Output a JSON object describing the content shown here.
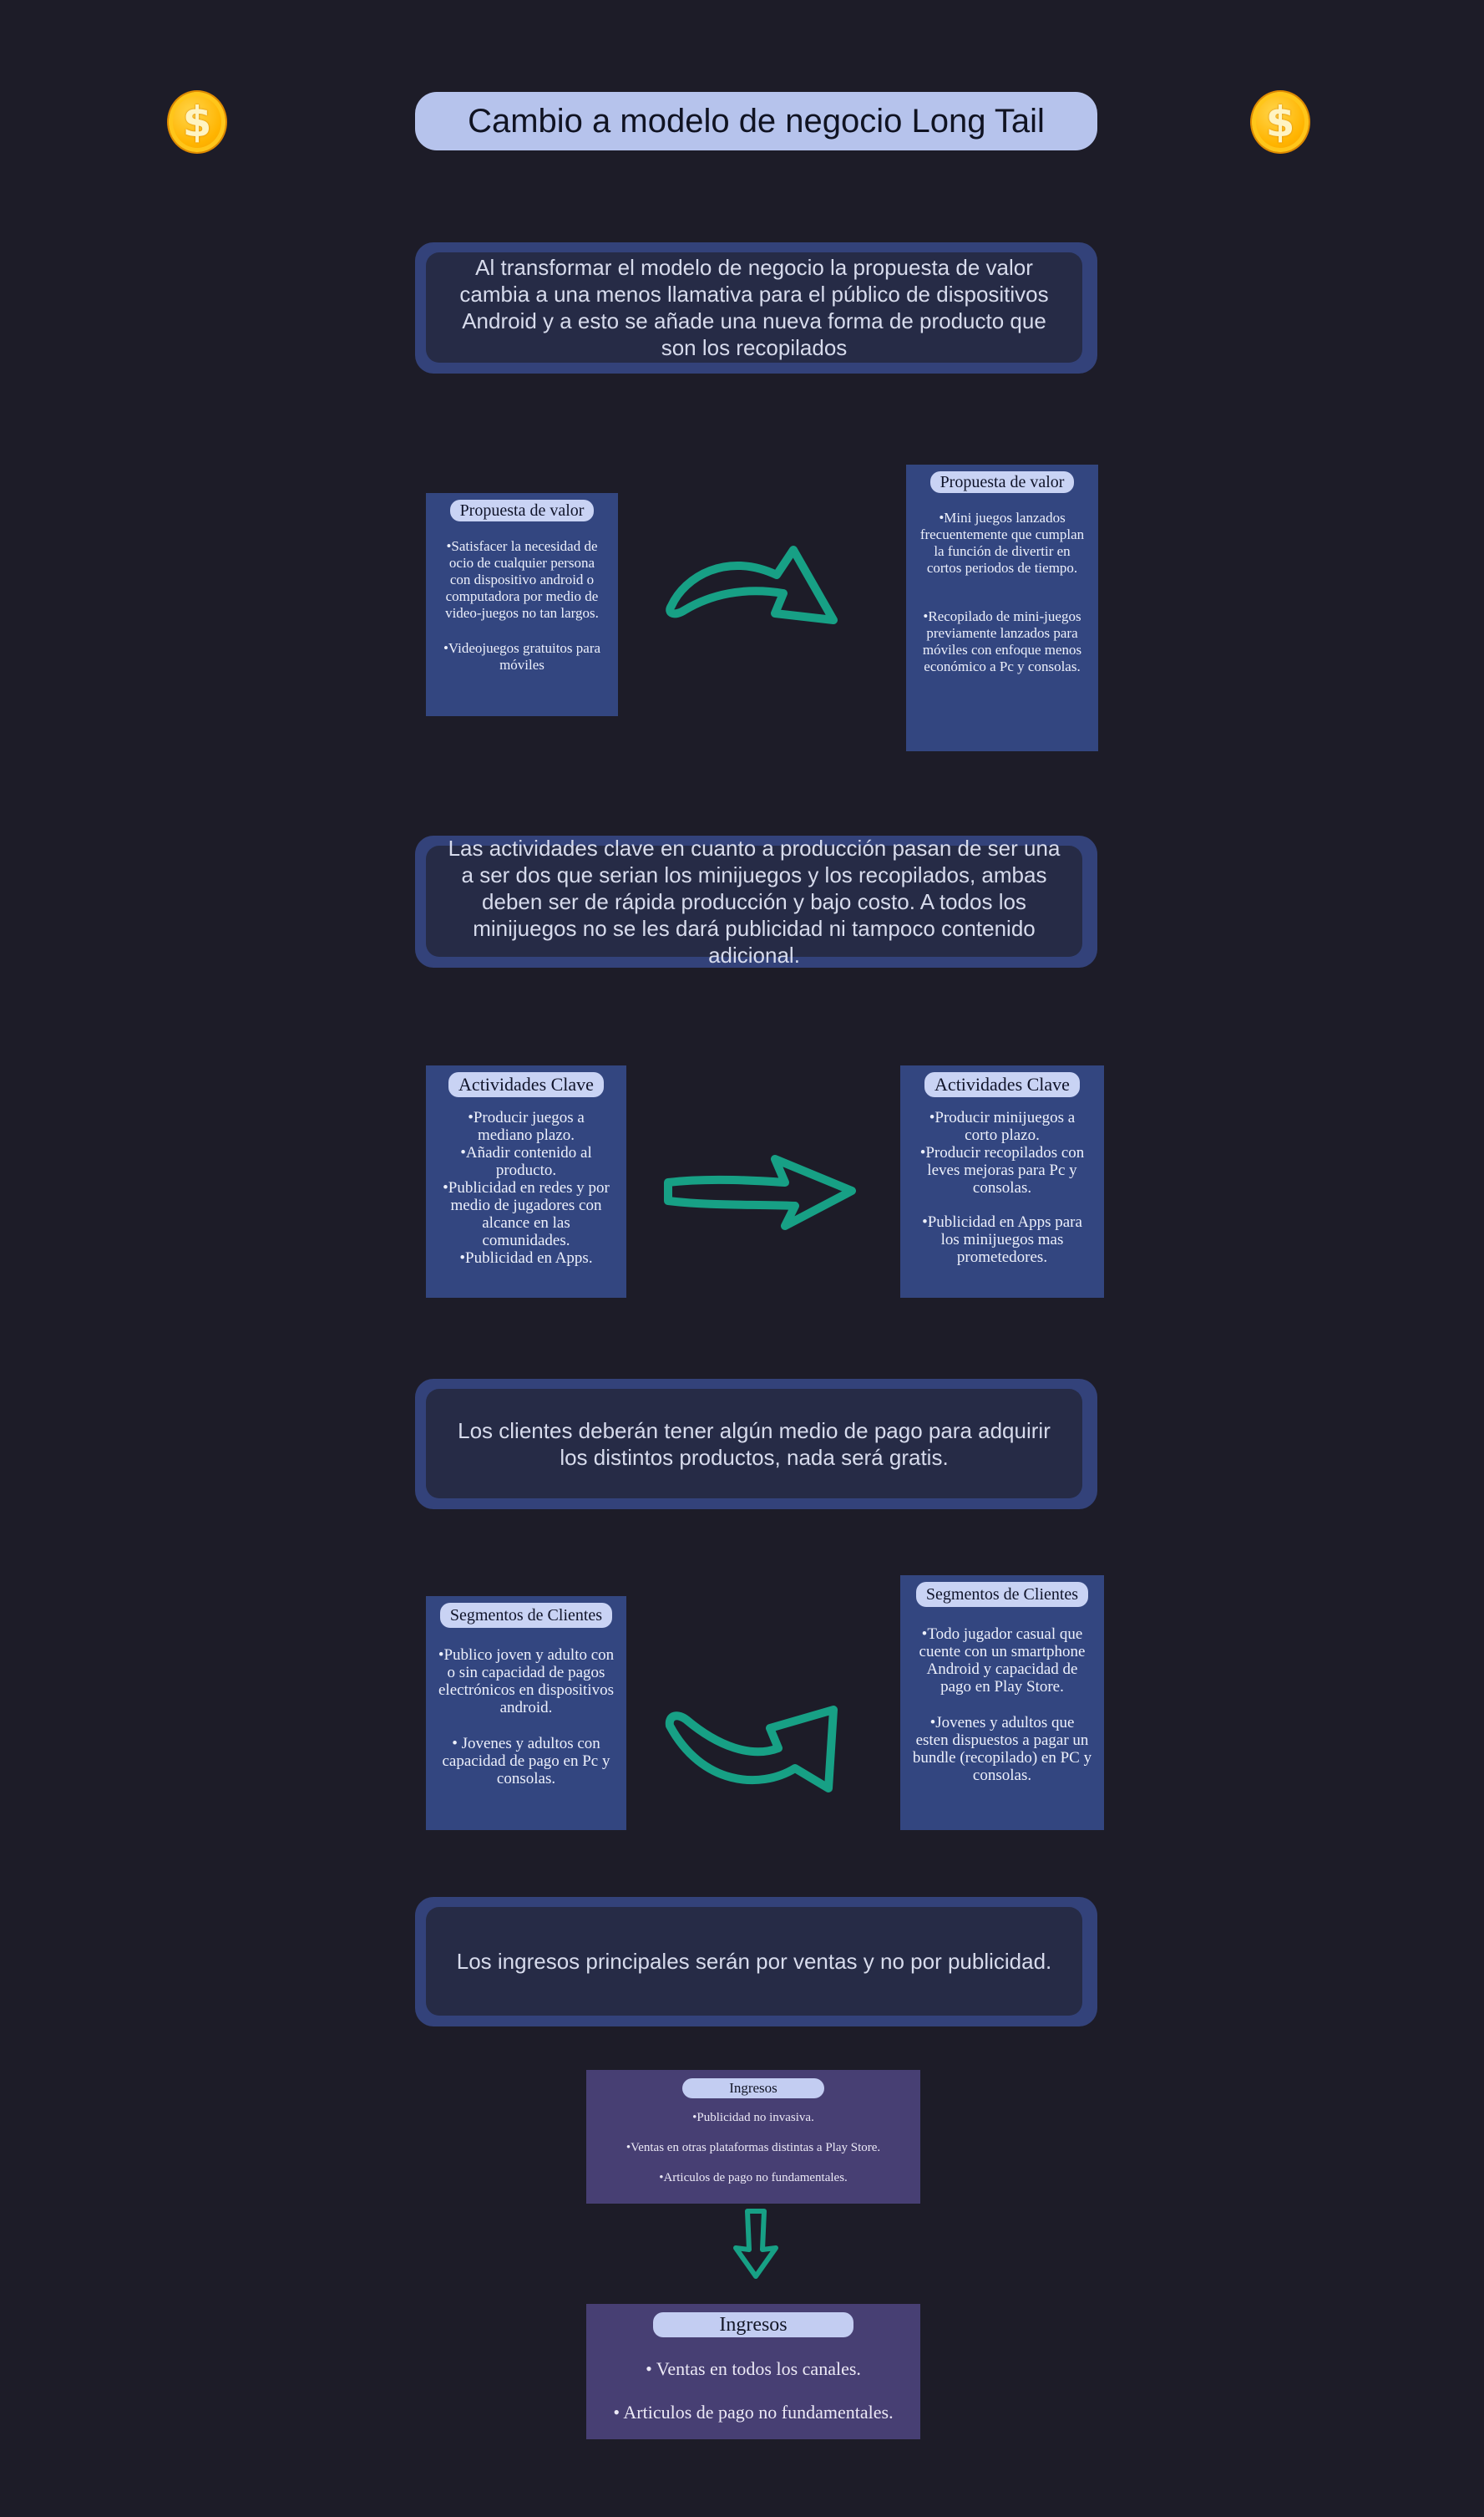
{
  "title": "Cambio a modelo de negocio Long Tail",
  "icons": {
    "coin": "dollar-coin-icon",
    "arrow": "green-arrow-icon"
  },
  "colors": {
    "background": "#1d1c28",
    "accent_arrow": "#17a085",
    "coin": "#ffb400"
  },
  "notes": {
    "value": "Al transformar el modelo de negocio la propuesta de valor cambia a una menos llamativa para el público de dispositivos Android  y a esto se añade una nueva forma de producto que son los recopilados",
    "activities": "Las actividades clave en cuanto a producción pasan de ser una a ser dos que serian los minijuegos y los recopilados, ambas deben ser de rápida producción y bajo costo. A todos los minijuegos no se les dará publicidad ni tampoco contenido adicional.",
    "clients": "Los clientes deberán tener algún medio de pago para adquirir los distintos productos, nada será gratis.",
    "revenue": "Los ingresos principales serán por ventas y no por publicidad."
  },
  "value_before": {
    "title": "Propuesta de valor",
    "items": [
      "•Satisfacer la necesidad de ocio de cualquier persona con dispositivo android o computadora por medio de video-juegos no tan largos.",
      "•Videojuegos gratuitos para móviles"
    ]
  },
  "value_after": {
    "title": "Propuesta de valor",
    "items": [
      "•Mini juegos lanzados frecuentemente  que cumplan la función de divertir en cortos periodos de tiempo.",
      "•Recopilado de mini-juegos previamente lanzados para móviles con enfoque menos económico a Pc y consolas."
    ]
  },
  "activities_before": {
    "title": "Actividades Clave",
    "items": [
      "•Producir juegos a mediano plazo.",
      "•Añadir contenido al producto.",
      "•Publicidad en redes y por medio de jugadores con alcance en las comunidades.",
      "•Publicidad en Apps."
    ]
  },
  "activities_after": {
    "title": "Actividades Clave",
    "items": [
      "•Producir minijuegos a corto plazo.",
      "•Producir recopilados con leves mejoras para Pc y consolas.",
      "•Publicidad en Apps para los minijuegos mas prometedores."
    ]
  },
  "segments_before": {
    "title": "Segmentos de Clientes",
    "items": [
      "•Publico joven y adulto con o sin capacidad de pagos electrónicos en dispositivos android.",
      "• Jovenes y adultos con capacidad de pago en Pc y consolas."
    ]
  },
  "segments_after": {
    "title": "Segmentos de Clientes",
    "items": [
      "•Todo jugador casual que cuente con un smartphone Android y capacidad de pago en Play Store.",
      "•Jovenes y adultos que esten dispuestos a pagar un bundle (recopilado) en PC y consolas."
    ]
  },
  "revenue_before": {
    "title": "Ingresos",
    "items": [
      "•Publicidad no invasiva.",
      "•Ventas en otras plataformas distintas a Play Store.",
      "•Articulos de pago no fundamentales."
    ]
  },
  "revenue_after": {
    "title": "Ingresos",
    "items": [
      "• Ventas en todos los canales.",
      "• Articulos de pago no fundamentales."
    ]
  }
}
